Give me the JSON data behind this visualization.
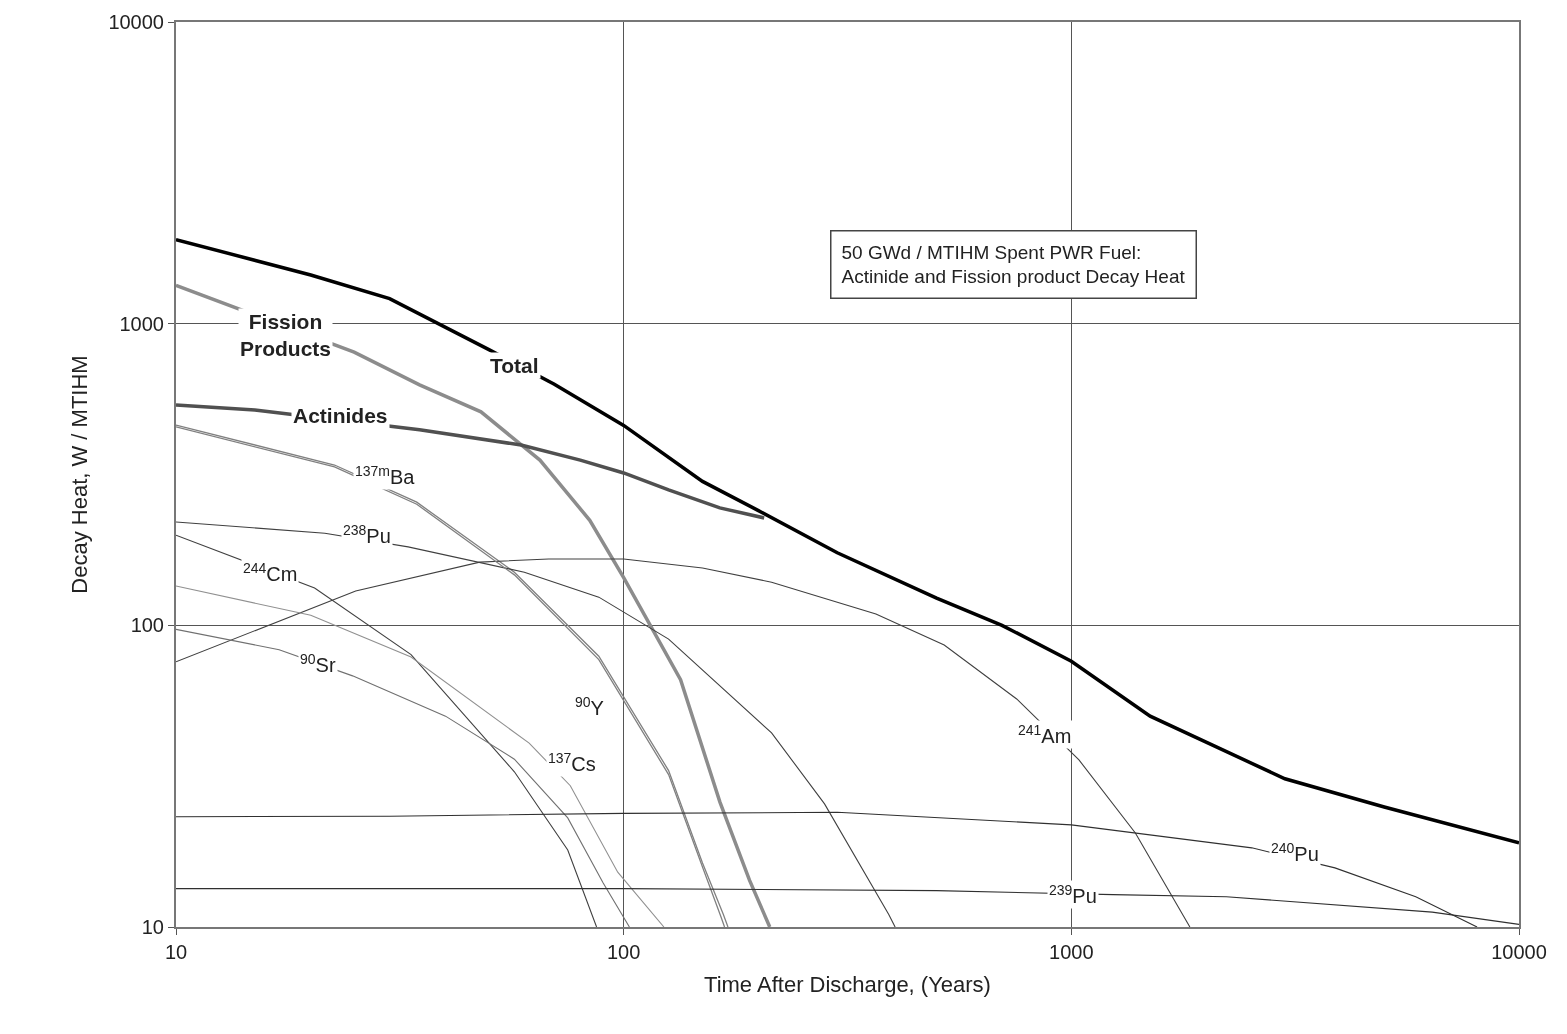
{
  "chart_data": {
    "type": "line",
    "xlabel": "Time After Discharge, (Years)",
    "ylabel": "Decay Heat, W / MTIHM",
    "log": "xy",
    "xlim": [
      10,
      10000
    ],
    "ylim": [
      10,
      10000
    ],
    "xticks": [
      10,
      100,
      1000,
      10000
    ],
    "yticks": [
      10,
      100,
      1000,
      10000
    ],
    "grid": true,
    "legend": false,
    "marker": "none",
    "line_style": "solid",
    "annotations": [
      "50 GWd / MTIHM Spent PWR Fuel:\nActinide and Fission product Decay Heat"
    ],
    "series": [
      {
        "name": "Total",
        "color": "#000000",
        "x": [
          10,
          20,
          30,
          50,
          70,
          100,
          150,
          200,
          300,
          500,
          700,
          1000,
          1500,
          2000,
          3000,
          5000,
          10000
        ],
        "values": [
          1900,
          1450,
          1210,
          820,
          630,
          460,
          300,
          240,
          174,
          123,
          100,
          76,
          50,
          41,
          31,
          25,
          19
        ]
      },
      {
        "name": "Fission\nProducts",
        "color": "#8c8c8c",
        "x": [
          10,
          25,
          35,
          48,
          65,
          84,
          100,
          134,
          164,
          191,
          212
        ],
        "values": [
          1340,
          805,
          627,
          510,
          353,
          223,
          144,
          66,
          26,
          14.3,
          10
        ]
      },
      {
        "name": "Actinides",
        "color": "#505050",
        "x": [
          10,
          15,
          35,
          59,
          80,
          100,
          126,
          164,
          206
        ],
        "values": [
          537,
          517,
          445,
          396,
          353,
          320,
          281,
          245,
          227
        ]
      },
      {
        "name": "$^{137m}$Ba",
        "color": "#808080",
        "x": [
          10,
          22.6,
          34.5,
          57,
          88,
          126,
          150,
          167,
          171
        ],
        "values": [
          461,
          340,
          256,
          150,
          79,
          33,
          16.3,
          11,
          10
        ]
      },
      {
        "name": "$^{238}$Pu",
        "color": "#404040",
        "x": [
          10,
          21.5,
          33,
          60,
          88,
          126,
          214,
          281,
          391,
          404
        ],
        "values": [
          220,
          202,
          182,
          150,
          124,
          90,
          44,
          25.6,
          11,
          10
        ]
      },
      {
        "name": "$^{244}$Cm",
        "color": "#404040",
        "x": [
          10,
          20.4,
          33.5,
          57,
          75,
          87
        ],
        "values": [
          199,
          133,
          80,
          32.7,
          18,
          10
        ]
      },
      {
        "name": "$^{241}$Am",
        "color": "#404040",
        "x": [
          10,
          25.2,
          47.7,
          68,
          100,
          150,
          214,
          366,
          520,
          755,
          1040,
          1390,
          1840
        ],
        "values": [
          75.7,
          130,
          162,
          166,
          166,
          155,
          139,
          109,
          86,
          57,
          35.8,
          20.5,
          10
        ]
      },
      {
        "name": "$^{90}$Sr",
        "color": "#707070",
        "x": [
          10,
          17,
          24.8,
          40,
          57,
          75,
          90,
          103
        ],
        "values": [
          97,
          83,
          68,
          50,
          36,
          23,
          14,
          10
        ]
      },
      {
        "name": "$^{90}$Y",
        "color": "#808080",
        "x": [
          10,
          22.6,
          34.5,
          57,
          88,
          126,
          150,
          165,
          168
        ],
        "values": [
          455,
          335,
          252,
          147,
          77,
          32,
          15.8,
          10.8,
          10
        ]
      },
      {
        "name": "$^{137}$Cs",
        "color": "#909090",
        "x": [
          10,
          20,
          33.5,
          61.5,
          76,
          97,
          123
        ],
        "values": [
          135,
          108,
          78.5,
          40.7,
          29.4,
          15.2,
          10
        ]
      },
      {
        "name": "$^{240}$Pu",
        "color": "#303030",
        "x": [
          10,
          30,
          100,
          300,
          1000,
          2530,
          3880,
          5880,
          8060
        ],
        "values": [
          23.2,
          23.3,
          23.8,
          24,
          21.8,
          18.3,
          15.7,
          12.6,
          10
        ]
      },
      {
        "name": "$^{239}$Pu",
        "color": "#303030",
        "x": [
          10,
          100,
          500,
          1240,
          2220,
          6400,
          10000
        ],
        "values": [
          13.4,
          13.4,
          13.2,
          12.8,
          12.6,
          11.2,
          10.2
        ]
      }
    ]
  }
}
